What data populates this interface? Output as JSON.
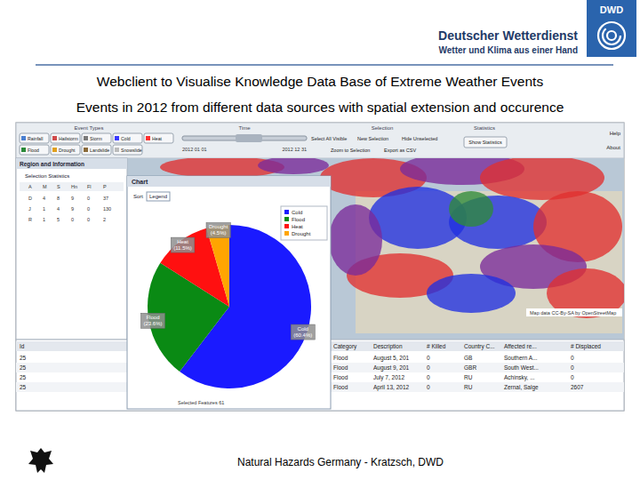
{
  "header": {
    "organization": "Deutscher Wetterdienst",
    "tagline": "Wetter und Klima aus einer Hand",
    "logo": "DWD"
  },
  "title": "Webclient to Visualise Knowledge Data Base of Extreme Weather Events",
  "subtitle": "Events in 2012 from different data sources with spatial extension and occurence",
  "screenshot": {
    "event_types_label": "Event Types",
    "event_types": [
      "Rainfall",
      "Hailstorm",
      "Storm",
      "Cold",
      "Heat",
      "Flood",
      "Drought",
      "Landslide",
      "Snowslide"
    ],
    "time_label": "Time",
    "time_start": "2012 01 01",
    "time_end": "2012 12 31",
    "selection_label": "Selection",
    "selection_buttons": [
      "Select All Visible",
      "New Selection",
      "Hide Unselected",
      "Zoom to Selection",
      "Export as CSV"
    ],
    "statistics_label": "Statistics",
    "show_statistics": "Show Statistics",
    "menu": [
      "Help",
      "About"
    ],
    "left_panel": {
      "title": "Region and Information",
      "stats_title": "Selection Statistics",
      "columns": [
        "A",
        "M",
        "S",
        "Hn",
        "Fl",
        "P"
      ],
      "rows": [
        [
          "D",
          "4",
          "8",
          "9",
          "0",
          "37"
        ],
        [
          "J",
          "1",
          "4",
          "9",
          "0",
          "130"
        ],
        [
          "R",
          "1",
          "5",
          "0",
          "0",
          "2"
        ]
      ]
    },
    "chart_window": {
      "title": "Chart",
      "tabs": [
        "Sort",
        "Legend"
      ],
      "footer": "Selected Features 61"
    },
    "map_credit": "Map data CC-By-SA by OpenStreetMap",
    "table": {
      "columns": [
        "Id",
        "Category",
        "Description",
        "# Killed",
        "Country C...",
        "Affected re...",
        "# Displaced"
      ],
      "rows": [
        [
          "25",
          "Flood",
          "August 5, 201",
          "0",
          "GB",
          "Southern A...",
          "0"
        ],
        [
          "25",
          "Flood",
          "August 9, 201",
          "0",
          "GBR",
          "South West...",
          "0"
        ],
        [
          "25",
          "Flood",
          "July 7, 2012",
          "0",
          "RU",
          "Achinsky, ...",
          "0"
        ],
        [
          "25",
          "Flood",
          "April 13, 2012",
          "0",
          "RU",
          "Zernal, Salge",
          "2607"
        ]
      ]
    }
  },
  "chart_data": {
    "type": "pie",
    "categories": [
      "Cold",
      "Flood",
      "Heat",
      "Drought"
    ],
    "values": [
      60.4,
      23.6,
      11.5,
      4.5
    ],
    "value_labels": [
      "(60.4%)",
      "(23.6%)",
      "(11.5%)",
      "(4.5%)"
    ],
    "colors": [
      "#1a1aff",
      "#0a8a14",
      "#ff1010",
      "#ffa500"
    ],
    "data_labels": true,
    "legend": "top-right"
  },
  "footer": "Natural Hazards Germany  -  Kratzsch, DWD"
}
